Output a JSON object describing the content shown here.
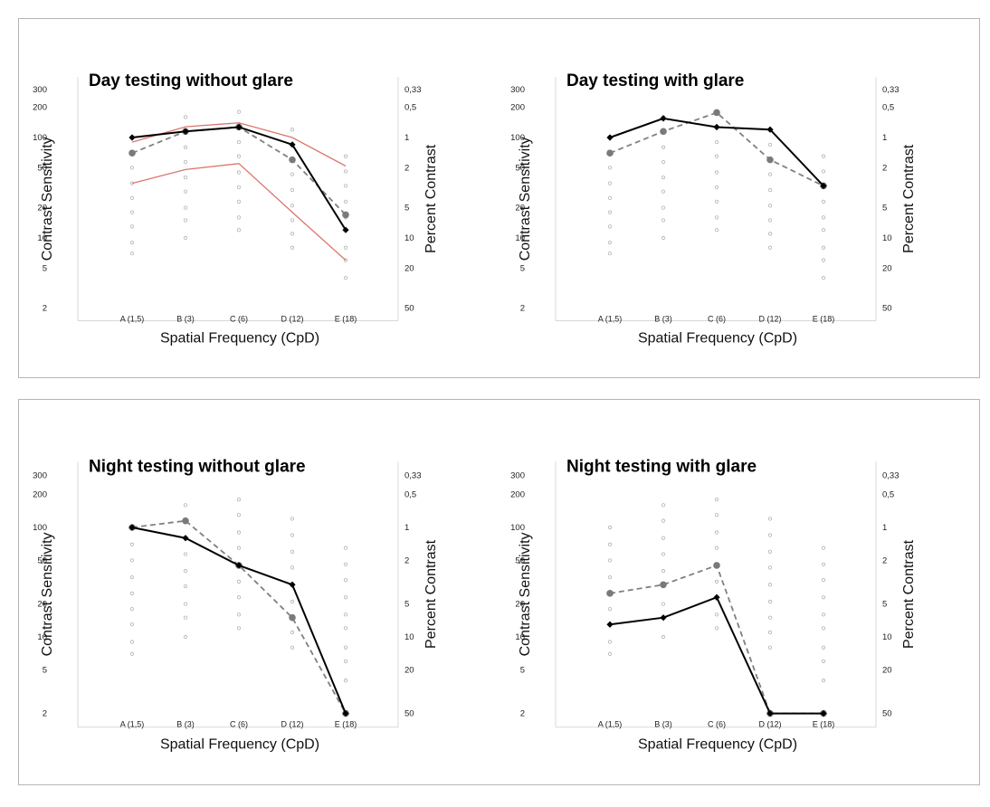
{
  "chart_data": [
    {
      "type": "line",
      "title": "Day testing without glare",
      "xlabel": "Spatial Frequency (CpD)",
      "ylabel": "Contrast Sensitivity",
      "y2label": "Percent Contrast",
      "yscale": "log",
      "ylim": [
        1.5,
        400
      ],
      "categories": [
        "A (1,5)",
        "B (3)",
        "C (6)",
        "D (12)",
        "E (18)"
      ],
      "yticks": [
        "300",
        "200",
        "100",
        "50",
        "20",
        "10",
        "5",
        "2"
      ],
      "yticks_values": [
        300,
        200,
        100,
        50,
        20,
        10,
        5,
        2
      ],
      "y2ticks": [
        "0,33",
        "0,5",
        "1",
        "2",
        "5",
        "10",
        "20",
        "50"
      ],
      "series": [
        {
          "style": "solid-black",
          "values": [
            100,
            115,
            127,
            85,
            12
          ]
        },
        {
          "style": "dashed-gray",
          "values": [
            70,
            115,
            127,
            60,
            17
          ]
        },
        {
          "style": "red-upper",
          "values": [
            90,
            128,
            140,
            100,
            52
          ]
        },
        {
          "style": "red-lower",
          "values": [
            35,
            48,
            55,
            18,
            6
          ]
        }
      ],
      "grid": false
    },
    {
      "type": "line",
      "title": "Day testing with glare",
      "xlabel": "Spatial Frequency (CpD)",
      "ylabel": "Contrast Sensitivity",
      "y2label": "Percent Contrast",
      "yscale": "log",
      "ylim": [
        1.5,
        400
      ],
      "categories": [
        "A (1,5)",
        "B (3)",
        "C (6)",
        "D (12)",
        "E (18)"
      ],
      "yticks": [
        "300",
        "200",
        "100",
        "50",
        "20",
        "10",
        "5",
        "2"
      ],
      "yticks_values": [
        300,
        200,
        100,
        50,
        20,
        10,
        5,
        2
      ],
      "y2ticks": [
        "0,33",
        "0,5",
        "1",
        "2",
        "5",
        "10",
        "20",
        "50"
      ],
      "series": [
        {
          "style": "solid-black",
          "values": [
            100,
            155,
            127,
            120,
            33
          ]
        },
        {
          "style": "dashed-gray",
          "values": [
            70,
            115,
            177,
            60,
            33
          ]
        }
      ],
      "grid": false
    },
    {
      "type": "line",
      "title": "Night testing without glare",
      "xlabel": "Spatial Frequency (CpD)",
      "ylabel": "Contrast Sensitivity",
      "y2label": "Percent Contrast",
      "yscale": "log",
      "ylim": [
        1.5,
        400
      ],
      "categories": [
        "A (1,5)",
        "B (3)",
        "C (6)",
        "D (12)",
        "E (18)"
      ],
      "yticks": [
        "300",
        "200",
        "100",
        "50",
        "20",
        "10",
        "5",
        "2"
      ],
      "yticks_values": [
        300,
        200,
        100,
        50,
        20,
        10,
        5,
        2
      ],
      "y2ticks": [
        "0,33",
        "0,5",
        "1",
        "2",
        "5",
        "10",
        "20",
        "50"
      ],
      "series": [
        {
          "style": "solid-black",
          "values": [
            100,
            80,
            45,
            30,
            2
          ]
        },
        {
          "style": "dashed-gray",
          "values": [
            100,
            115,
            45,
            15,
            2
          ]
        }
      ],
      "grid": false
    },
    {
      "type": "line",
      "title": "Night testing with glare",
      "xlabel": "Spatial Frequency (CpD)",
      "ylabel": "Contrast Sensitivity",
      "y2label": "Percent Contrast",
      "yscale": "log",
      "ylim": [
        1.5,
        400
      ],
      "categories": [
        "A (1,5)",
        "B (3)",
        "C (6)",
        "D (12)",
        "E (18)"
      ],
      "yticks": [
        "300",
        "200",
        "100",
        "50",
        "20",
        "10",
        "5",
        "2"
      ],
      "yticks_values": [
        300,
        200,
        100,
        50,
        20,
        10,
        5,
        2
      ],
      "y2ticks": [
        "0,33",
        "0,5",
        "1",
        "2",
        "5",
        "10",
        "20",
        "50"
      ],
      "series": [
        {
          "style": "solid-black",
          "values": [
            13,
            15,
            23,
            2,
            2
          ]
        },
        {
          "style": "dashed-gray",
          "values": [
            25,
            30,
            45,
            2,
            2
          ]
        }
      ],
      "grid": false
    }
  ],
  "reference_dots": [
    [
      100,
      70,
      50,
      35,
      25,
      18,
      13,
      9,
      7
    ],
    [
      160,
      115,
      80,
      57,
      40,
      29,
      20,
      15,
      10
    ],
    [
      180,
      130,
      90,
      65,
      45,
      32,
      23,
      16,
      12
    ],
    [
      120,
      85,
      60,
      43,
      30,
      21,
      15,
      11,
      8
    ],
    [
      65,
      46,
      33,
      23,
      16,
      12,
      8,
      6,
      4
    ]
  ],
  "colors": {
    "solid": "#000000",
    "dashed": "#808080",
    "red": "#d9776e",
    "dots": "#b0b0b0",
    "frame": "#b5b5b5"
  }
}
